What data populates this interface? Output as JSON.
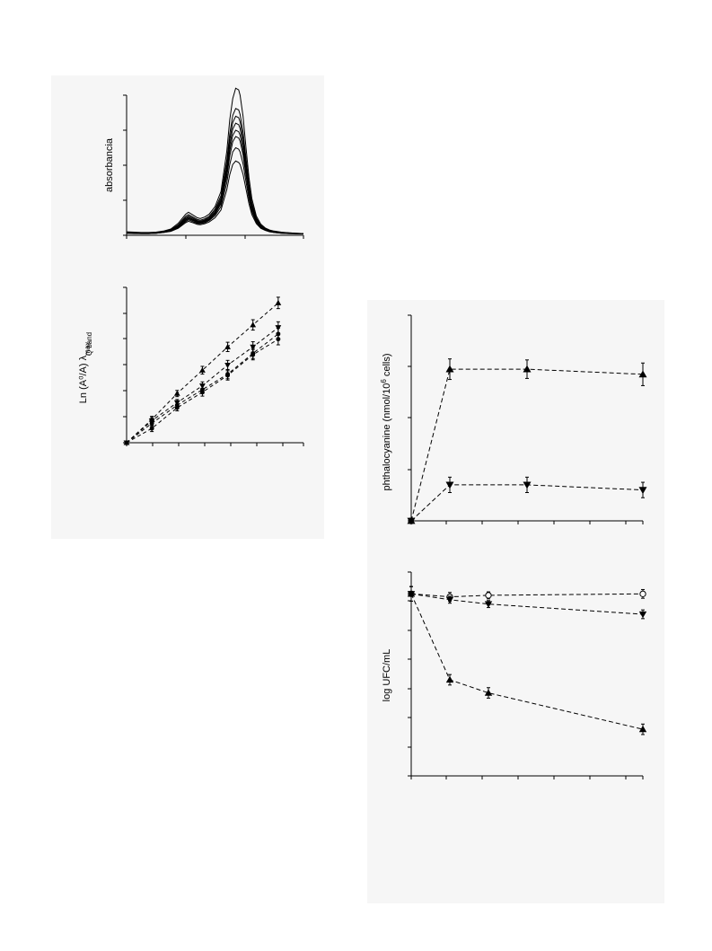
{
  "chart_data": [
    {
      "id": "spectra",
      "type": "line",
      "title": "",
      "xlabel": "",
      "ylabel": "absorbancia",
      "xlim": [
        0,
        6
      ],
      "ylim": [
        0,
        4
      ],
      "x": [
        0.0,
        0.25,
        0.5,
        0.75,
        1.0,
        1.25,
        1.5,
        1.75,
        2.0,
        2.1,
        2.25,
        2.4,
        2.5,
        2.65,
        2.8,
        3.0,
        3.2,
        3.4,
        3.5,
        3.6,
        3.7,
        3.8,
        3.85,
        3.95,
        4.05,
        4.15,
        4.25,
        4.4,
        4.55,
        4.7,
        4.85,
        5.0,
        5.25,
        5.5,
        5.75,
        6.0
      ],
      "series": [
        {
          "values": [
            0.1,
            0.09,
            0.08,
            0.08,
            0.09,
            0.12,
            0.18,
            0.34,
            0.6,
            0.66,
            0.58,
            0.5,
            0.48,
            0.52,
            0.6,
            0.82,
            1.25,
            2.4,
            3.3,
            3.9,
            4.2,
            4.15,
            4.0,
            3.4,
            2.5,
            1.65,
            1.05,
            0.55,
            0.32,
            0.21,
            0.15,
            0.12,
            0.09,
            0.07,
            0.06,
            0.05
          ]
        },
        {
          "values": [
            0.09,
            0.08,
            0.07,
            0.07,
            0.08,
            0.11,
            0.16,
            0.3,
            0.54,
            0.59,
            0.52,
            0.45,
            0.43,
            0.47,
            0.54,
            0.75,
            1.13,
            2.14,
            2.9,
            3.42,
            3.62,
            3.58,
            3.45,
            2.95,
            2.2,
            1.45,
            0.93,
            0.49,
            0.29,
            0.19,
            0.14,
            0.11,
            0.08,
            0.07,
            0.06,
            0.05
          ]
        },
        {
          "values": [
            0.08,
            0.07,
            0.07,
            0.07,
            0.07,
            0.1,
            0.15,
            0.28,
            0.5,
            0.55,
            0.49,
            0.42,
            0.4,
            0.44,
            0.51,
            0.7,
            1.06,
            2.0,
            2.72,
            3.22,
            3.4,
            3.36,
            3.24,
            2.77,
            2.06,
            1.37,
            0.88,
            0.46,
            0.27,
            0.18,
            0.13,
            0.1,
            0.08,
            0.06,
            0.05,
            0.05
          ]
        },
        {
          "values": [
            0.08,
            0.07,
            0.06,
            0.06,
            0.07,
            0.1,
            0.14,
            0.26,
            0.47,
            0.52,
            0.46,
            0.4,
            0.38,
            0.42,
            0.48,
            0.66,
            1.0,
            1.88,
            2.56,
            3.03,
            3.2,
            3.16,
            3.05,
            2.6,
            1.94,
            1.29,
            0.83,
            0.44,
            0.26,
            0.17,
            0.13,
            0.1,
            0.07,
            0.06,
            0.05,
            0.05
          ]
        },
        {
          "values": [
            0.07,
            0.07,
            0.06,
            0.06,
            0.07,
            0.09,
            0.13,
            0.25,
            0.44,
            0.49,
            0.44,
            0.38,
            0.36,
            0.4,
            0.46,
            0.63,
            0.95,
            1.77,
            2.41,
            2.85,
            3.0,
            2.96,
            2.86,
            2.44,
            1.82,
            1.22,
            0.78,
            0.42,
            0.25,
            0.17,
            0.12,
            0.09,
            0.07,
            0.06,
            0.05,
            0.04
          ]
        },
        {
          "values": [
            0.07,
            0.06,
            0.06,
            0.06,
            0.06,
            0.09,
            0.13,
            0.24,
            0.42,
            0.47,
            0.42,
            0.36,
            0.35,
            0.38,
            0.44,
            0.6,
            0.9,
            1.67,
            2.26,
            2.67,
            2.82,
            2.78,
            2.69,
            2.3,
            1.71,
            1.15,
            0.74,
            0.4,
            0.24,
            0.16,
            0.12,
            0.09,
            0.07,
            0.06,
            0.05,
            0.04
          ]
        },
        {
          "values": [
            0.06,
            0.06,
            0.05,
            0.05,
            0.06,
            0.08,
            0.12,
            0.22,
            0.39,
            0.44,
            0.39,
            0.34,
            0.33,
            0.36,
            0.42,
            0.56,
            0.82,
            1.5,
            2.02,
            2.38,
            2.5,
            2.46,
            2.38,
            2.04,
            1.53,
            1.03,
            0.67,
            0.37,
            0.22,
            0.15,
            0.11,
            0.08,
            0.06,
            0.05,
            0.05,
            0.04
          ]
        },
        {
          "values": [
            0.06,
            0.05,
            0.05,
            0.05,
            0.06,
            0.08,
            0.11,
            0.2,
            0.36,
            0.4,
            0.36,
            0.31,
            0.3,
            0.33,
            0.38,
            0.5,
            0.72,
            1.3,
            1.73,
            2.02,
            2.12,
            2.08,
            2.02,
            1.74,
            1.32,
            0.9,
            0.59,
            0.33,
            0.2,
            0.14,
            0.1,
            0.08,
            0.06,
            0.05,
            0.04,
            0.04
          ]
        }
      ]
    },
    {
      "id": "kinetics",
      "type": "scatter",
      "title": "",
      "xlabel": "",
      "ylabel": "Ln (A⁰/A)  λ",
      "ylabel_sub": "max",
      "ylabel_sup": "Q band",
      "xlim": [
        0,
        7
      ],
      "ylim": [
        0,
        6
      ],
      "series": [
        {
          "marker": "triangle-up",
          "x": [
            0,
            1,
            2,
            3,
            4,
            5,
            6
          ],
          "y": [
            0,
            0.9,
            1.9,
            2.8,
            3.7,
            4.55,
            5.4
          ],
          "err": [
            0.05,
            0.12,
            0.12,
            0.15,
            0.18,
            0.2,
            0.22
          ]
        },
        {
          "marker": "triangle-down",
          "x": [
            0,
            1,
            2,
            3,
            4,
            5,
            6
          ],
          "y": [
            0,
            0.85,
            1.55,
            2.2,
            3.0,
            3.7,
            4.45
          ],
          "err": [
            0.05,
            0.12,
            0.12,
            0.15,
            0.18,
            0.2,
            0.22
          ]
        },
        {
          "marker": "circle",
          "x": [
            0,
            1,
            2,
            3,
            4,
            5,
            6
          ],
          "y": [
            0,
            0.75,
            1.45,
            2.05,
            2.65,
            3.45,
            4.2
          ],
          "err": [
            0.05,
            0.12,
            0.12,
            0.15,
            0.18,
            0.2,
            0.22
          ]
        },
        {
          "marker": "circle",
          "x": [
            0,
            1,
            2,
            3,
            4,
            5,
            6
          ],
          "y": [
            0,
            0.55,
            1.35,
            1.95,
            2.6,
            3.4,
            4.0
          ],
          "err": [
            0.05,
            0.12,
            0.12,
            0.15,
            0.18,
            0.2,
            0.22
          ]
        }
      ]
    },
    {
      "id": "uptake",
      "type": "line",
      "title": "",
      "xlabel": "",
      "ylabel": "phthalocyanine (nmol/10",
      "ylabel_sup": "6",
      "ylabel_tail": " cells)",
      "xlim": [
        0,
        6
      ],
      "ylim": [
        0,
        4
      ],
      "series": [
        {
          "marker": "triangle-up",
          "x": [
            0,
            1,
            3,
            6
          ],
          "y": [
            0,
            2.95,
            2.95,
            2.85
          ],
          "err": [
            0.05,
            0.2,
            0.18,
            0.22
          ]
        },
        {
          "marker": "triangle-down",
          "x": [
            0,
            1,
            3,
            6
          ],
          "y": [
            0,
            0.7,
            0.7,
            0.6
          ],
          "err": [
            0.05,
            0.15,
            0.15,
            0.15
          ]
        }
      ]
    },
    {
      "id": "survival",
      "type": "line",
      "title": "",
      "xlabel": "",
      "ylabel": "log UFC/mL",
      "xlim": [
        0,
        6
      ],
      "ylim": [
        0,
        7
      ],
      "series": [
        {
          "marker": "circle-open",
          "x": [
            0,
            1,
            2,
            6
          ],
          "y": [
            6.25,
            6.15,
            6.2,
            6.25
          ],
          "err": [
            0.25,
            0.15,
            0.12,
            0.15
          ]
        },
        {
          "marker": "triangle-down",
          "x": [
            0,
            1,
            2,
            6
          ],
          "y": [
            6.25,
            6.05,
            5.9,
            5.55
          ],
          "err": [
            0.25,
            0.12,
            0.12,
            0.15
          ]
        },
        {
          "marker": "triangle-up",
          "x": [
            0,
            1,
            2,
            6
          ],
          "y": [
            6.25,
            3.3,
            2.85,
            1.6
          ],
          "err": [
            0.25,
            0.18,
            0.18,
            0.18
          ]
        }
      ]
    }
  ]
}
